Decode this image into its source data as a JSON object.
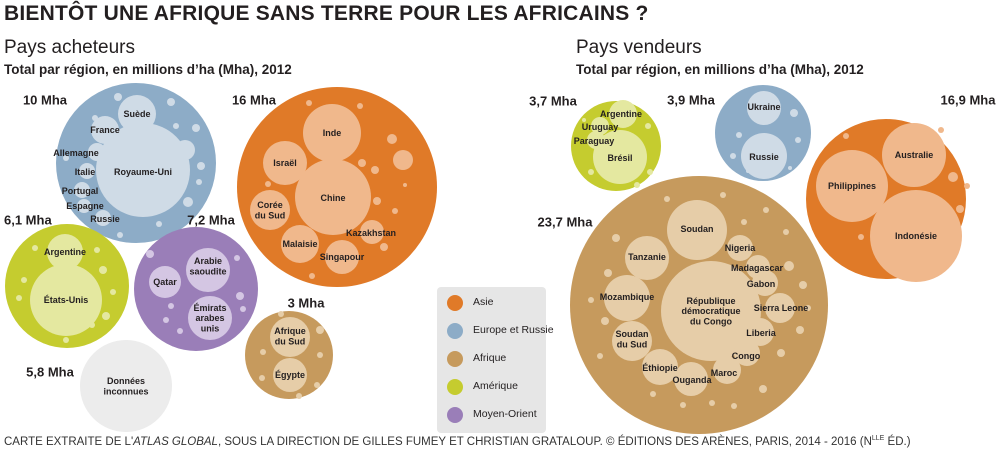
{
  "title": "BIENTÔT UNE AFRIQUE SANS TERRE POUR LES AFRICAINS ?",
  "buyers": {
    "title": "Pays acheteurs",
    "subtitle": "Total par région, en millions d’ha (Mha), 2012",
    "groups": [
      {
        "region": "europe",
        "total": "10 Mha",
        "countries": [
          "Suède",
          "France",
          "Allemagne",
          "Italie",
          "Royaume-Uni",
          "Portugal",
          "Espagne",
          "Russie"
        ]
      },
      {
        "region": "asia",
        "total": "16 Mha",
        "countries": [
          "Inde",
          "Israël",
          "Chine",
          "Corée du Sud",
          "Kazakhstan",
          "Malaisie",
          "Singapour"
        ]
      },
      {
        "region": "america",
        "total": "6,1 Mha",
        "countries": [
          "Argentine",
          "États-Unis"
        ]
      },
      {
        "region": "middleeast",
        "total": "7,2 Mha",
        "countries": [
          "Arabie saoudite",
          "Qatar",
          "Émirats arabes unis"
        ]
      },
      {
        "region": "africa",
        "total": "3 Mha",
        "countries": [
          "Afrique du Sud",
          "Égypte"
        ]
      },
      {
        "region": "unknown",
        "total": "5,8 Mha",
        "countries": [
          "Données inconnues"
        ]
      }
    ]
  },
  "sellers": {
    "title": "Pays vendeurs",
    "subtitle": "Total par région, en millions d’ha (Mha), 2012",
    "groups": [
      {
        "region": "america",
        "total": "3,7 Mha",
        "countries": [
          "Argentine",
          "Uruguay",
          "Paraguay",
          "Brésil"
        ]
      },
      {
        "region": "europe",
        "total": "3,9 Mha",
        "countries": [
          "Ukraine",
          "Russie"
        ]
      },
      {
        "region": "asia",
        "total": "16,9 Mha",
        "countries": [
          "Australie",
          "Philippines",
          "Indonésie"
        ]
      },
      {
        "region": "africa",
        "total": "23,7 Mha",
        "countries": [
          "Soudan",
          "Nigeria",
          "Tanzanie",
          "Madagascar",
          "Gabon",
          "Mozambique",
          "République démocratique du Congo",
          "Sierra Leone",
          "Soudan du Sud",
          "Liberia",
          "Éthiopie",
          "Congo",
          "Maroc",
          "Ouganda"
        ]
      }
    ]
  },
  "legend": [
    {
      "key": "asia",
      "label": "Asie"
    },
    {
      "key": "europe",
      "label": "Europe et Russie"
    },
    {
      "key": "africa",
      "label": "Afrique"
    },
    {
      "key": "america",
      "label": "Amérique"
    },
    {
      "key": "middleeast",
      "label": "Moyen-Orient"
    }
  ],
  "colors": {
    "asia": "#e07a28",
    "asia_light": "#f0b88c",
    "europe": "#8dacc7",
    "europe_light": "#cfdbe6",
    "africa": "#c69a5d",
    "africa_light": "#e6cda8",
    "america": "#c5cc2f",
    "america_light": "#e4e8a0",
    "middleeast": "#9a7eb8",
    "middleeast_light": "#d4c6e3",
    "unknown": "#ececec"
  },
  "footer": {
    "part1": "CARTE EXTRAITE DE L'",
    "italic": "ATLAS GLOBAL",
    "part2": ", SOUS LA DIRECTION DE GILLES FUMEY ET CHRISTIAN GRATALOUP. © ÉDITIONS DES ARÈNES, PARIS, 2014 - 2016 (N",
    "sup": "LLE",
    "part3": " ÉD.)"
  }
}
